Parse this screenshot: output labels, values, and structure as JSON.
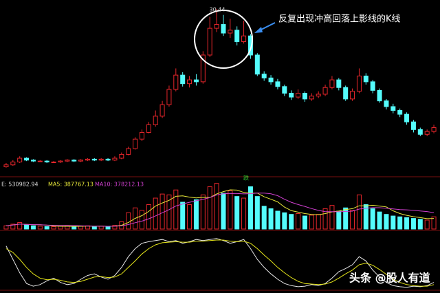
{
  "chart_data": [
    {
      "type": "candlestick",
      "annotation": "反复出现冲高回落上影线的K线",
      "ylim": [
        13,
        31
      ],
      "up_color": "#e8262b",
      "down_color": "#54fcfc",
      "open": [
        13.9,
        14.1,
        14.4,
        14.8,
        14.6,
        14.5,
        14.5,
        14.4,
        14.4,
        14.5,
        14.6,
        14.5,
        14.6,
        14.7,
        14.6,
        14.7,
        14.6,
        14.8,
        15.2,
        15.8,
        16.8,
        17.5,
        18.3,
        19.2,
        20.4,
        22.0,
        23.5,
        22.6,
        23.0,
        22.8,
        25.6,
        28.4,
        28.8,
        27.9,
        28.2,
        27.0,
        27.6,
        25.6,
        23.6,
        23.2,
        22.8,
        22.3,
        21.6,
        21.2,
        21.6,
        21.0,
        21.3,
        21.5,
        22.2,
        23.0,
        22.2,
        21.0,
        21.8,
        23.4,
        22.8,
        21.9,
        20.8,
        20.2,
        19.8,
        19.4,
        18.6,
        17.8,
        17.3,
        17.6
      ],
      "high": [
        14.3,
        14.6,
        15.0,
        14.9,
        14.7,
        14.6,
        14.6,
        14.5,
        14.6,
        14.7,
        14.7,
        14.7,
        14.8,
        14.8,
        14.8,
        14.8,
        15.0,
        15.4,
        16.0,
        17.0,
        17.8,
        18.6,
        19.8,
        20.8,
        22.4,
        24.2,
        23.8,
        23.4,
        23.6,
        26.0,
        29.6,
        30.44,
        29.8,
        29.4,
        28.6,
        29.2,
        27.8,
        25.8,
        23.9,
        23.5,
        23.1,
        22.5,
        21.9,
        22.0,
        21.8,
        21.6,
        21.8,
        22.5,
        23.4,
        23.2,
        22.4,
        22.1,
        24.2,
        23.7,
        23.0,
        22.1,
        21.0,
        20.5,
        20.0,
        19.6,
        18.8,
        18.0,
        17.8,
        18.3
      ],
      "low": [
        13.8,
        14.0,
        14.3,
        14.5,
        14.4,
        14.4,
        14.3,
        14.3,
        14.3,
        14.4,
        14.4,
        14.4,
        14.5,
        14.5,
        14.5,
        14.5,
        14.5,
        14.7,
        15.1,
        15.7,
        16.6,
        17.4,
        18.1,
        19.0,
        20.2,
        21.8,
        22.3,
        22.2,
        22.4,
        22.6,
        25.4,
        28.0,
        27.6,
        27.4,
        26.6,
        26.8,
        25.2,
        23.4,
        22.9,
        22.5,
        22.0,
        21.3,
        20.9,
        21.0,
        20.7,
        20.8,
        21.1,
        21.3,
        22.0,
        21.9,
        20.8,
        20.8,
        21.6,
        22.5,
        21.6,
        20.6,
        19.9,
        19.5,
        19.1,
        18.3,
        17.5,
        17.1,
        17.1,
        17.4
      ],
      "close": [
        14.1,
        14.4,
        14.8,
        14.6,
        14.5,
        14.5,
        14.4,
        14.4,
        14.5,
        14.6,
        14.5,
        14.6,
        14.7,
        14.6,
        14.7,
        14.6,
        14.8,
        15.2,
        15.8,
        16.8,
        17.5,
        18.3,
        19.2,
        20.4,
        22.0,
        23.5,
        22.6,
        23.0,
        22.8,
        25.6,
        28.4,
        28.8,
        27.9,
        28.2,
        27.0,
        27.6,
        25.6,
        23.6,
        23.2,
        22.8,
        22.3,
        21.6,
        21.2,
        21.6,
        21.0,
        21.3,
        21.5,
        22.2,
        23.0,
        22.2,
        21.0,
        21.8,
        23.4,
        22.8,
        21.9,
        20.8,
        20.2,
        19.8,
        19.4,
        18.6,
        17.8,
        17.3,
        17.6,
        18.0
      ]
    },
    {
      "type": "bar",
      "name": "E: 530982.94",
      "ylim": [
        0,
        600000
      ],
      "values": [
        40000,
        60000,
        80000,
        50000,
        40000,
        35000,
        30000,
        30000,
        35000,
        40000,
        30000,
        35000,
        40000,
        30000,
        35000,
        30000,
        45000,
        90000,
        200000,
        260000,
        230000,
        300000,
        380000,
        430000,
        420000,
        480000,
        330000,
        300000,
        360000,
        420000,
        520000,
        560000,
        440000,
        470000,
        400000,
        380000,
        520000,
        400000,
        280000,
        250000,
        220000,
        200000,
        180000,
        190000,
        160000,
        170000,
        180000,
        250000,
        290000,
        220000,
        260000,
        230000,
        420000,
        300000,
        250000,
        210000,
        180000,
        160000,
        150000,
        140000,
        130000,
        120000,
        110000,
        150000
      ],
      "series": [
        {
          "name": "MA5: 387767.13",
          "color": "#e8e83a",
          "values": [
            40000,
            50000,
            60000,
            57500,
            54000,
            53000,
            47000,
            37000,
            34000,
            34000,
            33000,
            34000,
            36000,
            35000,
            36000,
            34000,
            36000,
            46000,
            80000,
            131000,
            165000,
            216000,
            282000,
            320000,
            352000,
            402000,
            408000,
            392000,
            382000,
            390000,
            386000,
            432000,
            460000,
            482000,
            478000,
            450000,
            442000,
            442000,
            396000,
            366000,
            334000,
            270000,
            226000,
            208000,
            190000,
            180000,
            176000,
            190000,
            210000,
            222000,
            240000,
            250000,
            286000,
            286000,
            292000,
            282000,
            272000,
            224000,
            190000,
            168000,
            152000,
            140000,
            128000,
            130000
          ]
        },
        {
          "name": "MA10: 378212.13",
          "color": "#d040d0",
          "values": [
            40000,
            50000,
            60000,
            57500,
            54000,
            52500,
            49000,
            45600,
            44000,
            44000,
            43000,
            40500,
            37000,
            35000,
            35000,
            34000,
            34500,
            39000,
            55000,
            78000,
            97000,
            126000,
            161000,
            200000,
            238000,
            283000,
            308000,
            329000,
            347000,
            364000,
            386000,
            419000,
            433000,
            438000,
            436000,
            432000,
            434000,
            443000,
            441000,
            433000,
            410000,
            366000,
            329000,
            301000,
            278000,
            251000,
            229000,
            214000,
            213000,
            212000,
            216000,
            220000,
            245000,
            256000,
            263000,
            262000,
            255000,
            248000,
            238000,
            236000,
            230000,
            222000,
            215000,
            200000
          ]
        }
      ]
    },
    {
      "type": "line",
      "ylim": [
        0,
        100
      ],
      "series": [
        {
          "color": "#e6e6e6",
          "values": [
            80,
            55,
            30,
            10,
            5,
            8,
            15,
            20,
            12,
            8,
            10,
            18,
            25,
            28,
            22,
            18,
            25,
            40,
            60,
            75,
            85,
            88,
            90,
            92,
            88,
            90,
            85,
            88,
            92,
            90,
            92,
            94,
            90,
            85,
            88,
            92,
            75,
            55,
            40,
            28,
            18,
            10,
            6,
            4,
            5,
            8,
            6,
            10,
            20,
            32,
            38,
            45,
            60,
            52,
            35,
            22,
            12,
            6,
            4,
            3,
            5,
            4,
            6,
            12
          ]
        },
        {
          "color": "#e5e51a",
          "values": [
            75,
            68,
            55,
            40,
            28,
            20,
            17,
            18,
            16,
            13,
            12,
            14,
            18,
            22,
            23,
            21,
            22,
            28,
            40,
            52,
            65,
            75,
            82,
            86,
            87,
            88,
            87,
            87,
            89,
            89,
            90,
            91,
            91,
            89,
            88,
            89,
            85,
            75,
            63,
            52,
            40,
            30,
            21,
            14,
            10,
            9,
            8,
            9,
            13,
            20,
            28,
            35,
            45,
            48,
            44,
            36,
            27,
            18,
            12,
            8,
            6,
            5,
            5,
            8
          ]
        }
      ]
    }
  ],
  "marker": "跌",
  "watermark": "头条 @股人有道"
}
